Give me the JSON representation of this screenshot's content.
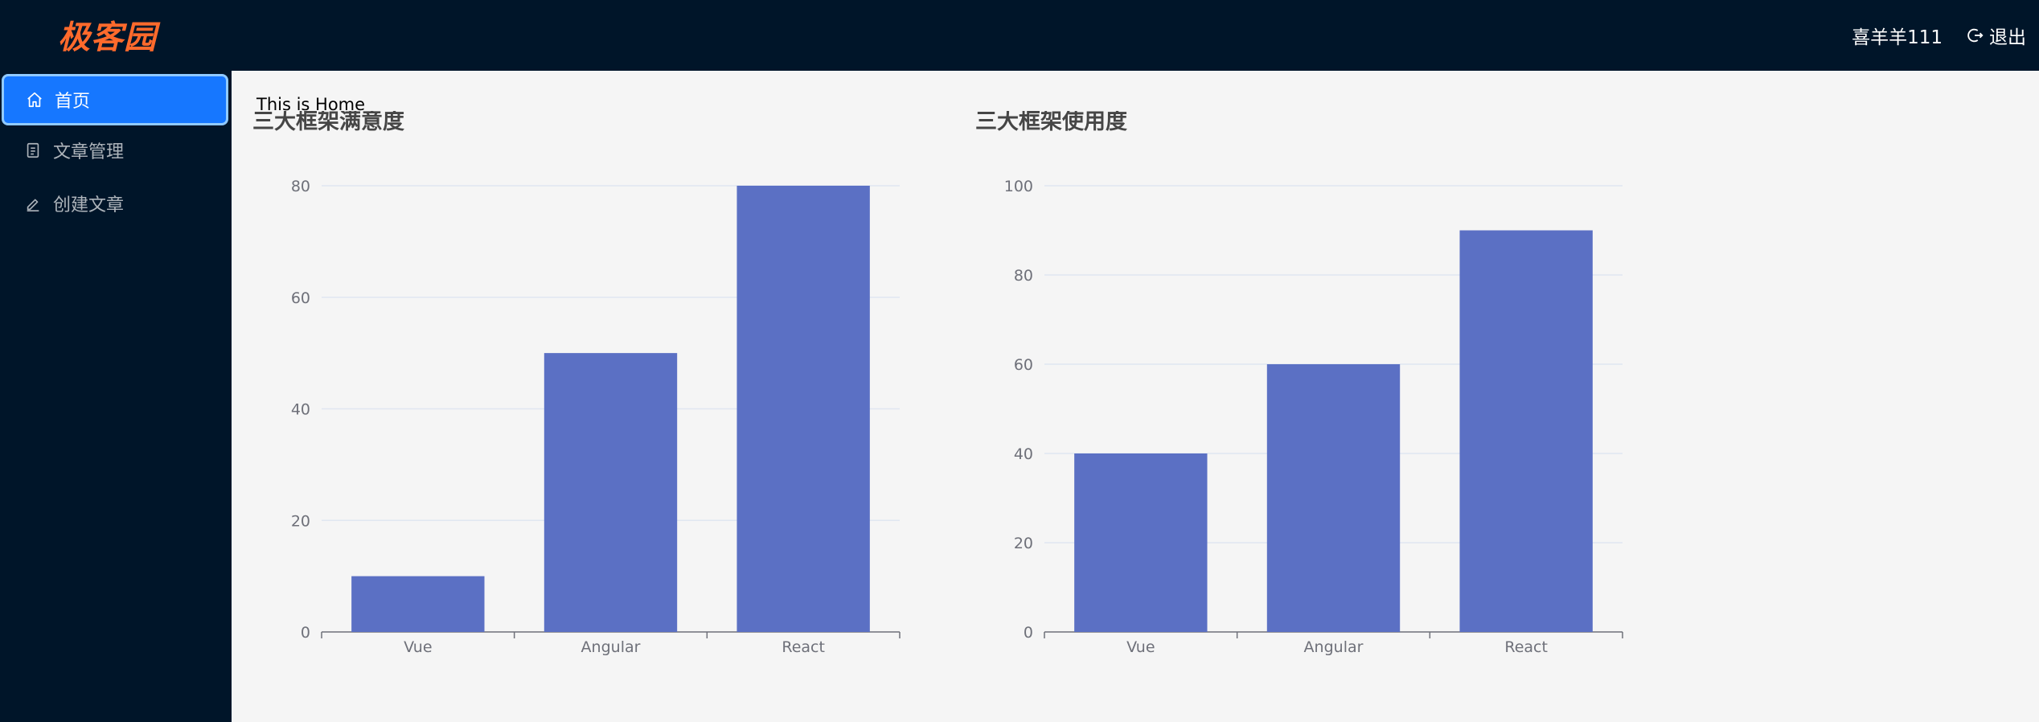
{
  "header": {
    "logo_text": "极客园",
    "username": "喜羊羊111",
    "logout_label": "退出"
  },
  "sidebar": {
    "items": [
      {
        "label": "首页",
        "icon": "home-icon",
        "active": true
      },
      {
        "label": "文章管理",
        "icon": "file-icon",
        "active": false
      },
      {
        "label": "创建文章",
        "icon": "edit-icon",
        "active": false
      }
    ]
  },
  "main": {
    "welcome_text": "This is Home"
  },
  "colors": {
    "bar": "#5b70c4",
    "active_menu": "#1677ff",
    "header_bg": "#001529"
  },
  "chart_data": [
    {
      "type": "bar",
      "title": "三大框架满意度",
      "categories": [
        "Vue",
        "Angular",
        "React"
      ],
      "values": [
        10,
        50,
        80
      ],
      "ylim": [
        0,
        80
      ],
      "yticks": [
        0,
        20,
        40,
        60,
        80
      ],
      "grid": true
    },
    {
      "type": "bar",
      "title": "三大框架使用度",
      "categories": [
        "Vue",
        "Angular",
        "React"
      ],
      "values": [
        40,
        60,
        90
      ],
      "ylim": [
        0,
        100
      ],
      "yticks": [
        0,
        20,
        40,
        60,
        80,
        100
      ],
      "grid": true
    }
  ]
}
